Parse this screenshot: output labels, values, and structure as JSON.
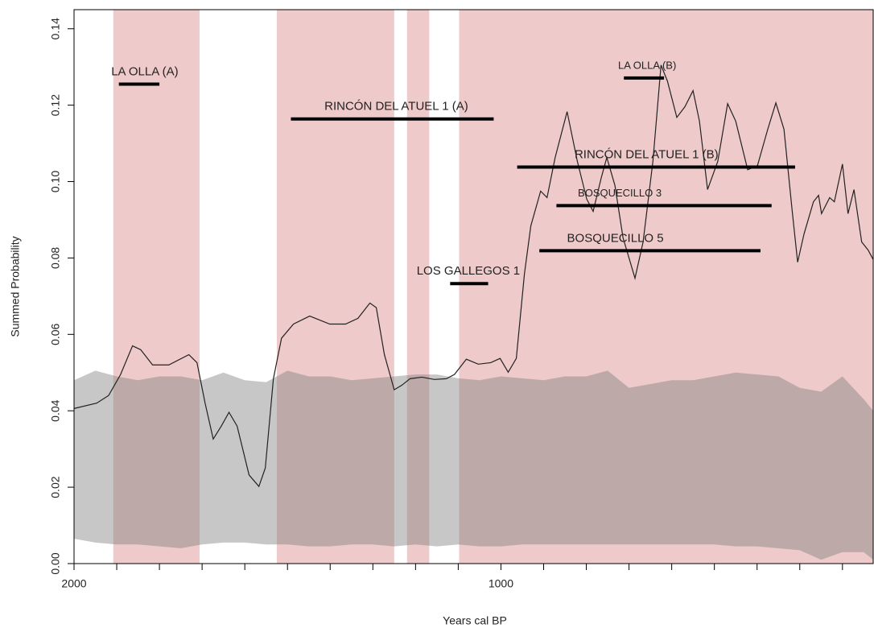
{
  "chart_data": {
    "type": "line",
    "x_label": "Years cal BP",
    "y_label": "Summed Probability",
    "xlim": [
      2000,
      128
    ],
    "ylim": [
      0,
      0.145
    ],
    "xticks": [
      2000,
      1000
    ],
    "xminorticks": [
      1900,
      1800,
      1700,
      1600,
      1500,
      1400,
      1300,
      1200,
      1100,
      900,
      800,
      700,
      600,
      500,
      400,
      300,
      200
    ],
    "yticks": [
      {
        "value": 0,
        "label": "0.00"
      },
      0.02,
      0.04,
      0.06,
      0.08,
      {
        "value": 0.1,
        "label": "0.10"
      },
      0.12,
      0.14
    ],
    "shaded_ranges": {
      "color": "#efcaca",
      "ranges": [
        {
          "start": 1908,
          "end": 1706
        },
        {
          "start": 1525,
          "end": 1250
        },
        {
          "start": 1220,
          "end": 1168
        },
        {
          "start": 1098,
          "end": 128
        }
      ]
    },
    "envelope": {
      "color": "rgba(128,128,128,0.44)",
      "x": [
        2000,
        1950,
        1900,
        1850,
        1800,
        1750,
        1700,
        1650,
        1600,
        1550,
        1500,
        1450,
        1400,
        1350,
        1300,
        1250,
        1200,
        1150,
        1100,
        1050,
        1000,
        950,
        900,
        850,
        800,
        750,
        700,
        650,
        600,
        550,
        500,
        450,
        400,
        350,
        300,
        250,
        200,
        150,
        128
      ],
      "upper": [
        0.048,
        0.0505,
        0.049,
        0.048,
        0.049,
        0.049,
        0.048,
        0.05,
        0.048,
        0.0475,
        0.0505,
        0.049,
        0.049,
        0.048,
        0.0485,
        0.049,
        0.0495,
        0.0495,
        0.0485,
        0.048,
        0.049,
        0.0485,
        0.048,
        0.049,
        0.049,
        0.0505,
        0.046,
        0.047,
        0.048,
        0.048,
        0.049,
        0.05,
        0.0495,
        0.049,
        0.046,
        0.045,
        0.049,
        0.043,
        0.04
      ],
      "lower": [
        0.0065,
        0.0055,
        0.005,
        0.005,
        0.0045,
        0.004,
        0.005,
        0.0055,
        0.0055,
        0.005,
        0.005,
        0.0045,
        0.0045,
        0.005,
        0.005,
        0.0045,
        0.005,
        0.0045,
        0.005,
        0.0045,
        0.0045,
        0.005,
        0.005,
        0.005,
        0.005,
        0.005,
        0.005,
        0.005,
        0.005,
        0.005,
        0.005,
        0.0045,
        0.0045,
        0.004,
        0.0035,
        0.001,
        0.003,
        0.003,
        0.001
      ]
    },
    "line": {
      "color": "#222222",
      "x": [
        2000,
        1947,
        1919,
        1891,
        1863,
        1844,
        1816,
        1778,
        1731,
        1712,
        1693,
        1674,
        1655,
        1637,
        1618,
        1590,
        1567,
        1552,
        1533,
        1514,
        1486,
        1448,
        1401,
        1364,
        1335,
        1307,
        1292,
        1273,
        1250,
        1232,
        1213,
        1185,
        1156,
        1128,
        1109,
        1081,
        1053,
        1024,
        1002,
        983,
        964,
        945,
        930,
        907,
        892,
        873,
        845,
        821,
        799,
        784,
        765,
        752,
        733,
        714,
        686,
        667,
        644,
        625,
        610,
        588,
        569,
        550,
        535,
        516,
        492,
        469,
        450,
        422,
        399,
        375,
        356,
        337,
        318,
        305,
        290,
        268,
        256,
        249,
        230,
        219,
        200,
        187,
        173,
        155,
        140,
        128
      ],
      "values": [
        0.0406,
        0.042,
        0.044,
        0.0495,
        0.057,
        0.056,
        0.052,
        0.052,
        0.0547,
        0.0526,
        0.042,
        0.0326,
        0.036,
        0.0396,
        0.036,
        0.0232,
        0.0202,
        0.025,
        0.0484,
        0.059,
        0.0627,
        0.0648,
        0.0627,
        0.0627,
        0.0642,
        0.0682,
        0.067,
        0.0547,
        0.0455,
        0.0467,
        0.0484,
        0.0488,
        0.0482,
        0.0484,
        0.0495,
        0.0535,
        0.0522,
        0.0526,
        0.0537,
        0.0501,
        0.0537,
        0.0758,
        0.0884,
        0.0975,
        0.0958,
        0.1063,
        0.1183,
        0.1053,
        0.0954,
        0.0922,
        0.101,
        0.1063,
        0.099,
        0.0853,
        0.0747,
        0.0842,
        0.1053,
        0.1305,
        0.1263,
        0.1168,
        0.1196,
        0.1238,
        0.1158,
        0.0979,
        0.1053,
        0.1204,
        0.1158,
        0.1031,
        0.1042,
        0.1137,
        0.1206,
        0.1137,
        0.0926,
        0.0789,
        0.0863,
        0.0947,
        0.0964,
        0.0916,
        0.0958,
        0.0947,
        0.1046,
        0.0916,
        0.0979,
        0.0842,
        0.0821,
        0.0796
      ]
    },
    "sites": [
      {
        "label": "LA OLLA (A)",
        "value": 0.1255,
        "start": 1895,
        "end": 1800
      },
      {
        "label": "RINCÓN DEL ATUEL 1 (A)",
        "value": 0.1164,
        "start": 1492,
        "end": 1017
      },
      {
        "label": "LOS GALLEGOS 1",
        "value": 0.0733,
        "start": 1119,
        "end": 1030
      },
      {
        "label": "LA OLLA (B)",
        "value": 0.1271,
        "start": 712,
        "end": 618
      },
      {
        "label": "RINCÓN DEL ATUEL 1 (B)",
        "value": 0.1038,
        "start": 962,
        "end": 311
      },
      {
        "label": "BOSQUECILLO 3",
        "value": 0.0937,
        "start": 870,
        "end": 366
      },
      {
        "label": "BOSQUECILLO 5",
        "value": 0.0819,
        "start": 910,
        "end": 392
      }
    ]
  }
}
